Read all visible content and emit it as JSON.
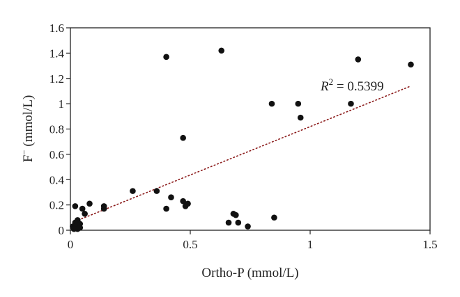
{
  "chart_data": {
    "type": "scatter",
    "title": "",
    "xlabel": "Ortho-P (mmol/L)",
    "ylabel_main": "F",
    "ylabel_sup": "−",
    "ylabel_rest": " (mmol/L)",
    "xlim": [
      0,
      1.5
    ],
    "ylim": [
      0,
      1.6
    ],
    "x_ticks": [
      {
        "value": 0,
        "label": "0"
      },
      {
        "value": 0.5,
        "label": "0.5"
      },
      {
        "value": 1,
        "label": "1"
      },
      {
        "value": 1.5,
        "label": "1.5"
      }
    ],
    "y_ticks": [
      {
        "value": 0,
        "label": "0"
      },
      {
        "value": 0.2,
        "label": "0.2"
      },
      {
        "value": 0.4,
        "label": "0.4"
      },
      {
        "value": 0.6,
        "label": "0.6"
      },
      {
        "value": 0.8,
        "label": "0.8"
      },
      {
        "value": 1.0,
        "label": "1"
      },
      {
        "value": 1.2,
        "label": "1.2"
      },
      {
        "value": 1.4,
        "label": "1.4"
      },
      {
        "value": 1.6,
        "label": "1.6"
      }
    ],
    "grid": false,
    "legend": "none",
    "marker_color": "#111111",
    "trendline": {
      "style": "dotted",
      "color": "#8b1a1a",
      "from": [
        0.02,
        0.07
      ],
      "to": [
        1.42,
        1.14
      ]
    },
    "annotation": {
      "r_label": "R",
      "r_sup": "2",
      "text": " = 0.5399"
    },
    "points": [
      [
        0.4,
        1.37
      ],
      [
        0.63,
        1.42
      ],
      [
        1.2,
        1.35
      ],
      [
        1.42,
        1.31
      ],
      [
        0.84,
        1.0
      ],
      [
        0.95,
        1.0
      ],
      [
        1.17,
        1.0
      ],
      [
        0.96,
        0.89
      ],
      [
        0.47,
        0.73
      ],
      [
        0.26,
        0.31
      ],
      [
        0.36,
        0.31
      ],
      [
        0.42,
        0.26
      ],
      [
        0.47,
        0.23
      ],
      [
        0.49,
        0.21
      ],
      [
        0.48,
        0.19
      ],
      [
        0.4,
        0.17
      ],
      [
        0.08,
        0.21
      ],
      [
        0.02,
        0.19
      ],
      [
        0.05,
        0.17
      ],
      [
        0.14,
        0.19
      ],
      [
        0.14,
        0.17
      ],
      [
        0.06,
        0.13
      ],
      [
        0.68,
        0.13
      ],
      [
        0.69,
        0.12
      ],
      [
        0.85,
        0.1
      ],
      [
        0.7,
        0.06
      ],
      [
        0.66,
        0.06
      ],
      [
        0.74,
        0.03
      ],
      [
        0.03,
        0.08
      ],
      [
        0.02,
        0.06
      ],
      [
        0.04,
        0.05
      ],
      [
        0.03,
        0.04
      ],
      [
        0.01,
        0.03
      ],
      [
        0.02,
        0.02
      ],
      [
        0.03,
        0.01
      ],
      [
        0.015,
        0.01
      ],
      [
        0.04,
        0.02
      ]
    ]
  }
}
